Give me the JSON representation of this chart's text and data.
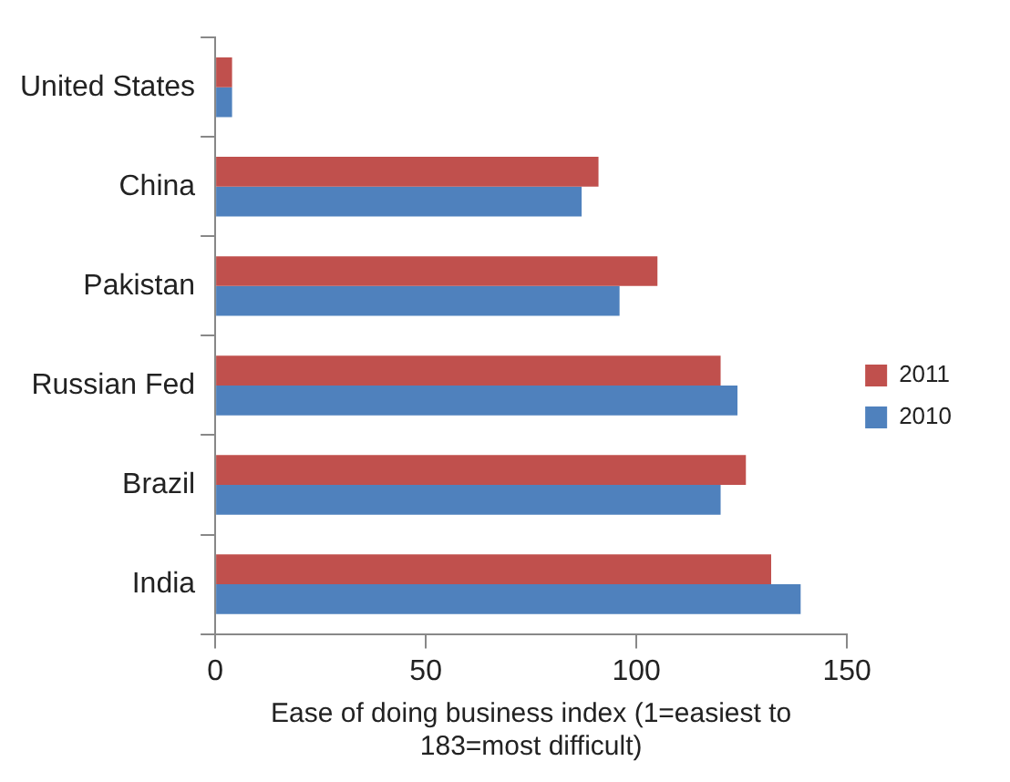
{
  "chart_data": {
    "type": "bar",
    "orientation": "horizontal",
    "xlabel": "Ease of doing business index (1=easiest to 183=most difficult)",
    "categories": [
      "United States",
      "China",
      "Pakistan",
      "Russian Fed",
      "Brazil",
      "India"
    ],
    "series": [
      {
        "name": "2011",
        "color": "#c0504d",
        "values": [
          4,
          91,
          105,
          120,
          126,
          132
        ]
      },
      {
        "name": "2010",
        "color": "#4f81bd",
        "values": [
          4,
          87,
          96,
          124,
          120,
          139
        ]
      }
    ],
    "xlim": [
      0,
      150
    ],
    "xticks": [
      0,
      50,
      100,
      150
    ],
    "grid": false,
    "legend": "right"
  }
}
